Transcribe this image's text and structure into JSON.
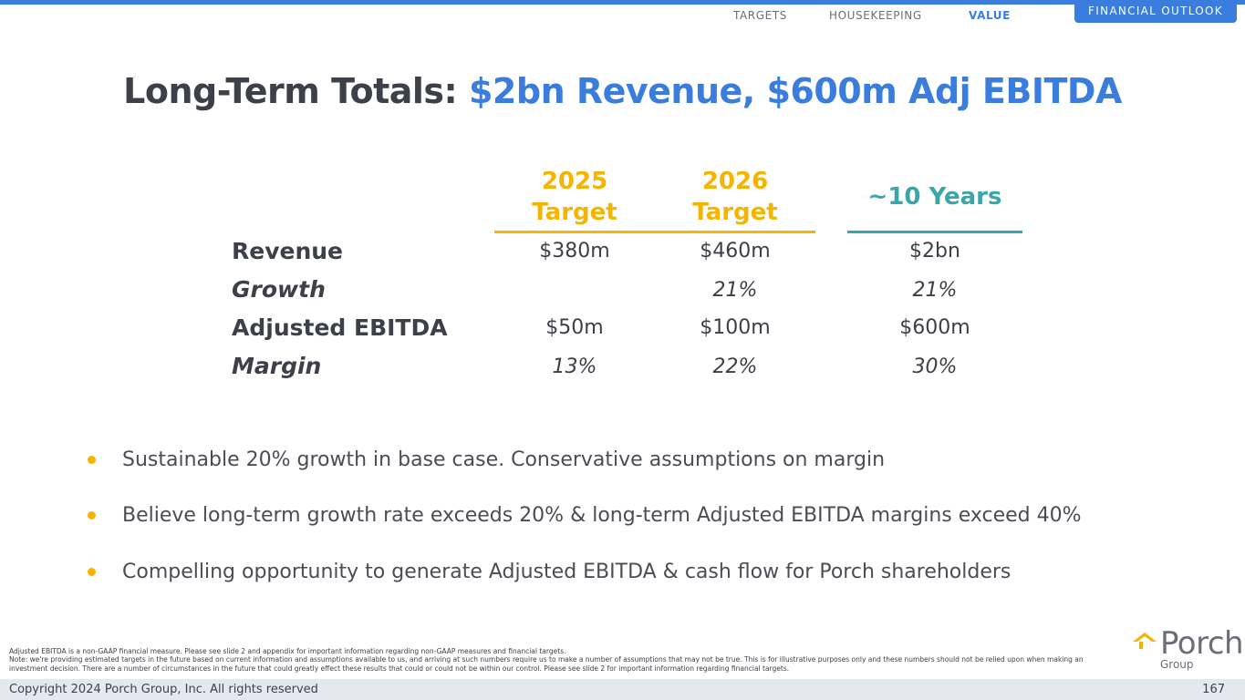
{
  "nav": {
    "items": [
      "TARGETS",
      "HOUSEKEEPING",
      "VALUE"
    ],
    "active": "VALUE",
    "section_tab": "FINANCIAL OUTLOOK"
  },
  "title": {
    "prefix": "Long-Term Totals: ",
    "highlight": "$2bn Revenue, $600m Adj EBITDA"
  },
  "table": {
    "columns": [
      {
        "line1": "2025",
        "line2": "Target"
      },
      {
        "line1": "2026",
        "line2": "Target"
      },
      {
        "line1": "~10 Years"
      }
    ],
    "rows": [
      {
        "label": "Revenue",
        "values": [
          "$380m",
          "$460m",
          "$2bn"
        ]
      },
      {
        "label": "Growth",
        "values": [
          "",
          "21%",
          "21%"
        ]
      },
      {
        "label": "Adjusted EBITDA",
        "values": [
          "$50m",
          "$100m",
          "$600m"
        ]
      },
      {
        "label": "Margin",
        "values": [
          "13%",
          "22%",
          "30%"
        ]
      }
    ]
  },
  "bullets": [
    "Sustainable 20% growth in base case. Conservative assumptions on margin",
    "Believe long-term growth rate exceeds 20% & long-term Adjusted EBITDA margins exceed 40%",
    "Compelling opportunity to generate Adjusted EBITDA & cash flow for Porch shareholders"
  ],
  "footnotes": [
    "Adjusted EBITDA is a non-GAAP financial measure. Please see slide 2 and appendix for important information regarding non-GAAP measures and financial targets.",
    "Note: we're providing estimated targets in the future based on current information and assumptions available to us, and arriving at such numbers require us to make a number of assumptions that may not be true. This is for illustrative purposes only and these numbers should not be relied upon when making an investment decision. There are a number of circumstances in the future that could greatly effect these results that could or could not be within our control. Please see slide 2 for important information regarding financial targets."
  ],
  "logo": {
    "word": "Porch",
    "sub": "Group"
  },
  "footer": {
    "copyright": "Copyright 2024 Porch Group, Inc. All rights reserved",
    "page_number": "167"
  },
  "colors": {
    "accent_blue": "#3b7ddd",
    "gold": "#f4b400",
    "teal": "#3aa6a9",
    "text_dark": "#3d4048"
  }
}
